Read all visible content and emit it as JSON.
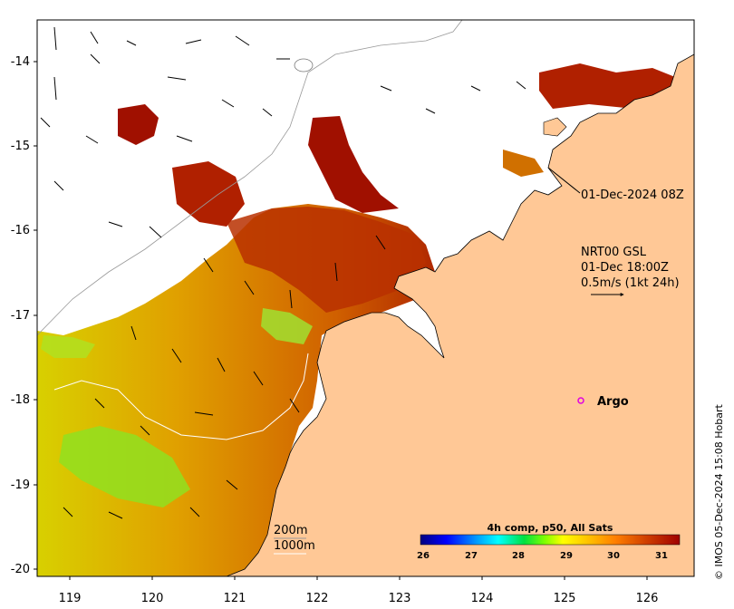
{
  "map": {
    "lon_ticks": [
      "119",
      "120",
      "121",
      "122",
      "123",
      "124",
      "125",
      "126"
    ],
    "lat_ticks": [
      "-14",
      "-15",
      "-16",
      "-17",
      "-18",
      "-19",
      "-20"
    ],
    "annotations": {
      "pass_time": "01-Dec-2024 08Z",
      "current_line1": "NRT00 GSL",
      "current_line2": "01-Dec 18:00Z",
      "current_line3": "0.5m/s (1kt 24h)"
    },
    "argo_label": "Argo",
    "depth_labels": {
      "d200": "200m",
      "d1000": "1000m"
    },
    "colorbar": {
      "title": "4h comp, p50, All Sats",
      "ticks": [
        "26",
        "27",
        "28",
        "29",
        "30",
        "31"
      ],
      "colors": [
        "#000080",
        "#0000ff",
        "#00a0ff",
        "#00ffff",
        "#00e040",
        "#80ff00",
        "#ffff00",
        "#ffc000",
        "#ff8000",
        "#d04000",
        "#a00000"
      ]
    },
    "credit": "© IMOS 05-Dec-2024 15:08 Hobart",
    "colors": {
      "land": "#ffc896",
      "sea_no_data": "#ffffff",
      "sst_hot": "#a01000"
    }
  }
}
